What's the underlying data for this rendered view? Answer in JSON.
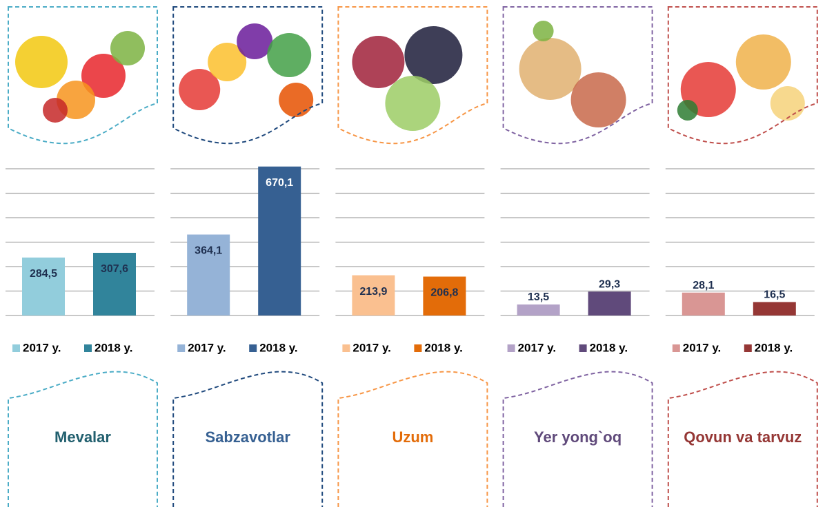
{
  "chart_data": [
    {
      "type": "bar",
      "title": "Mevalar",
      "title_color": "#215f6e",
      "frame_color": "#4bacc6",
      "ylim": [
        0,
        720
      ],
      "yticks": [
        0,
        120,
        240,
        360,
        480,
        600,
        720
      ],
      "grid": true,
      "series": [
        {
          "name": "2017 y.",
          "color": "#92cddc",
          "values": [
            284.5
          ],
          "value_labels": [
            "284,5"
          ]
        },
        {
          "name": "2018 y.",
          "color": "#31849b",
          "values": [
            307.6
          ],
          "value_labels": [
            "307,6"
          ]
        }
      ]
    },
    {
      "type": "bar",
      "title": "Sabzavotlar",
      "title_color": "#366092",
      "frame_color": "#1f497d",
      "ylim": [
        0,
        660
      ],
      "yticks": [
        0,
        110,
        220,
        330,
        440,
        550,
        660
      ],
      "grid": true,
      "series": [
        {
          "name": "2017 y.",
          "color": "#95b3d7",
          "values": [
            364.1
          ],
          "value_labels": [
            "364,1"
          ]
        },
        {
          "name": "2018 y.",
          "color": "#366092",
          "values": [
            670.1
          ],
          "value_labels": [
            "670,1"
          ]
        }
      ]
    },
    {
      "type": "bar",
      "title": "Uzum",
      "title_color": "#e36c09",
      "frame_color": "#f79646",
      "ylim": [
        0,
        780
      ],
      "yticks": [
        0,
        130,
        260,
        390,
        520,
        650,
        780
      ],
      "grid": true,
      "series": [
        {
          "name": "2017 y.",
          "color": "#fac090",
          "values": [
            213.9
          ],
          "value_labels": [
            "213,9"
          ]
        },
        {
          "name": "2018 y.",
          "color": "#e36c09",
          "values": [
            206.8
          ],
          "value_labels": [
            "206,8"
          ]
        }
      ]
    },
    {
      "type": "bar",
      "title": "Yer yong`oq",
      "title_color": "#604a7b",
      "frame_color": "#8064a2",
      "ylim": [
        0,
        180
      ],
      "yticks": [
        0,
        30,
        60,
        90,
        120,
        150,
        180
      ],
      "grid": true,
      "series": [
        {
          "name": "2017 y.",
          "color": "#b3a2c7",
          "values": [
            13.5
          ],
          "value_labels": [
            "13,5"
          ]
        },
        {
          "name": "2018 y.",
          "color": "#604a7b",
          "values": [
            29.3
          ],
          "value_labels": [
            "29,3"
          ]
        }
      ]
    },
    {
      "type": "bar",
      "title": "Qovun va tarvuz",
      "title_color": "#953735",
      "frame_color": "#c0504d",
      "ylim": [
        0,
        180
      ],
      "yticks": [
        0,
        30,
        60,
        90,
        120,
        150,
        180
      ],
      "grid": true,
      "series": [
        {
          "name": "2017 y.",
          "color": "#d99694",
          "values": [
            28.1
          ],
          "value_labels": [
            "28,1"
          ]
        },
        {
          "name": "2018 y.",
          "color": "#953735",
          "values": [
            16.5
          ],
          "value_labels": [
            "16,5"
          ]
        }
      ]
    }
  ]
}
